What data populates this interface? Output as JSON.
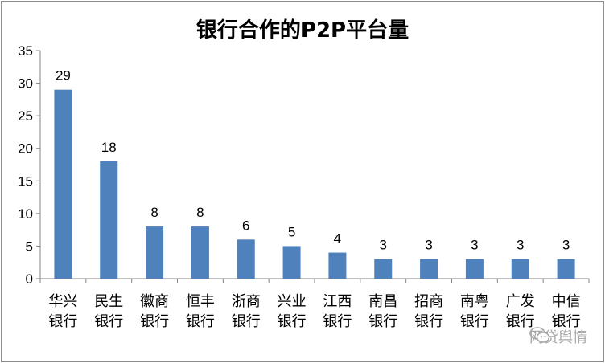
{
  "chart_data": {
    "type": "bar",
    "title": "银行合作的P2P平台量",
    "categories": [
      "华兴银行",
      "民生银行",
      "徽商银行",
      "恒丰银行",
      "浙商银行",
      "兴业银行",
      "江西银行",
      "南昌银行",
      "招商银行",
      "南粤银行",
      "广发银行",
      "中信银行"
    ],
    "category_lines": [
      [
        "华兴",
        "银行"
      ],
      [
        "民生",
        "银行"
      ],
      [
        "徽商",
        "银行"
      ],
      [
        "恒丰",
        "银行"
      ],
      [
        "浙商",
        "银行"
      ],
      [
        "兴业",
        "银行"
      ],
      [
        "江西",
        "银行"
      ],
      [
        "南昌",
        "银行"
      ],
      [
        "招商",
        "银行"
      ],
      [
        "南粤",
        "银行"
      ],
      [
        "广发",
        "银行"
      ],
      [
        "中信",
        "银行"
      ]
    ],
    "values": [
      29,
      18,
      8,
      8,
      6,
      5,
      4,
      3,
      3,
      3,
      3,
      3
    ],
    "ylim": [
      0,
      35
    ],
    "yticks": [
      0,
      5,
      10,
      15,
      20,
      25,
      30,
      35
    ],
    "xlabel": "",
    "ylabel": "",
    "grid": false,
    "legend": "none",
    "bar_color": "#4f81bd",
    "data_labels": true
  },
  "watermark": {
    "text": "网贷舆情",
    "icon": "wechat-icon"
  }
}
